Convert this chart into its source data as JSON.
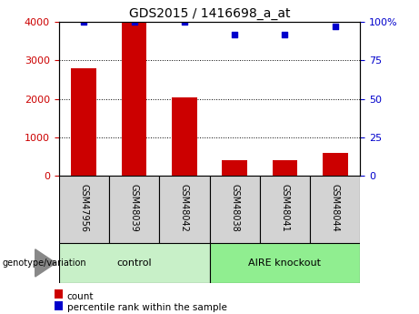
{
  "title": "GDS2015 / 1416698_a_at",
  "samples": [
    "GSM47956",
    "GSM48039",
    "GSM48042",
    "GSM48038",
    "GSM48041",
    "GSM48044"
  ],
  "counts": [
    2800,
    4000,
    2050,
    400,
    400,
    600
  ],
  "percentiles": [
    100,
    100,
    100,
    92,
    92,
    97
  ],
  "groups": [
    {
      "label": "control",
      "start": 0,
      "end": 3,
      "color": "#c8f0c8"
    },
    {
      "label": "AIRE knockout",
      "start": 3,
      "end": 6,
      "color": "#90ee90"
    }
  ],
  "bar_color": "#cc0000",
  "dot_color": "#0000cc",
  "left_ylim": [
    0,
    4000
  ],
  "right_ylim": [
    0,
    100
  ],
  "left_yticks": [
    0,
    1000,
    2000,
    3000,
    4000
  ],
  "right_yticks": [
    0,
    25,
    50,
    75,
    100
  ],
  "right_yticklabels": [
    "0",
    "25",
    "50",
    "75",
    "100%"
  ],
  "grid_values": [
    1000,
    2000,
    3000
  ],
  "bar_width": 0.5,
  "background_color": "#ffffff",
  "genotype_label": "genotype/variation",
  "legend_count_label": "count",
  "legend_pct_label": "percentile rank within the sample",
  "tick_label_color_left": "#cc0000",
  "tick_label_color_right": "#0000cc",
  "sample_box_color": "#d3d3d3",
  "title_fontsize": 10,
  "axis_fontsize": 8,
  "sample_label_fontsize": 7,
  "group_label_fontsize": 8,
  "legend_fontsize": 7.5
}
